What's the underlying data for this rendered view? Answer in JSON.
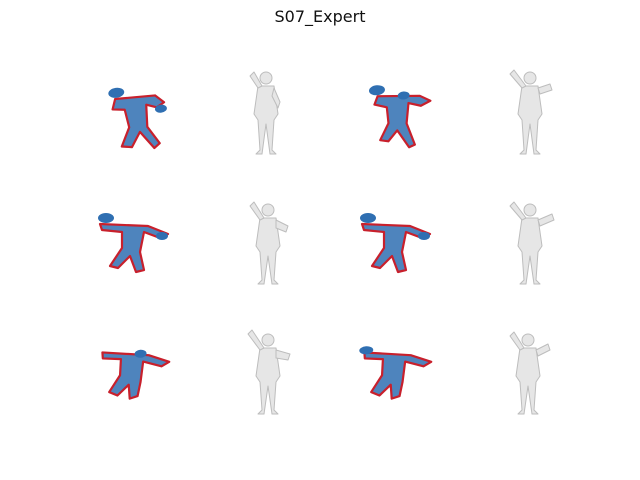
{
  "figure": {
    "title": "S07_Expert"
  },
  "colors": {
    "background": "#ffffff",
    "skeleton_fill": "#2f6fb2",
    "skeleton_outline": "#c8202c",
    "mesh_fill": "#e6e6e6",
    "mesh_shade": "#bdbdbd"
  },
  "grid": {
    "rows": 3,
    "pairs_per_row": 2,
    "cells": [
      {
        "kind": "skeleton",
        "icon": "pose-skeleton-icon"
      },
      {
        "kind": "mesh",
        "icon": "body-mesh-icon"
      },
      {
        "kind": "skeleton",
        "icon": "pose-skeleton-icon"
      },
      {
        "kind": "mesh",
        "icon": "body-mesh-icon"
      },
      {
        "kind": "skeleton",
        "icon": "pose-skeleton-icon"
      },
      {
        "kind": "mesh",
        "icon": "body-mesh-icon"
      },
      {
        "kind": "skeleton",
        "icon": "pose-skeleton-icon"
      },
      {
        "kind": "mesh",
        "icon": "body-mesh-icon"
      },
      {
        "kind": "skeleton",
        "icon": "pose-skeleton-icon"
      },
      {
        "kind": "mesh",
        "icon": "body-mesh-icon"
      },
      {
        "kind": "skeleton",
        "icon": "pose-skeleton-icon"
      },
      {
        "kind": "mesh",
        "icon": "body-mesh-icon"
      }
    ]
  }
}
